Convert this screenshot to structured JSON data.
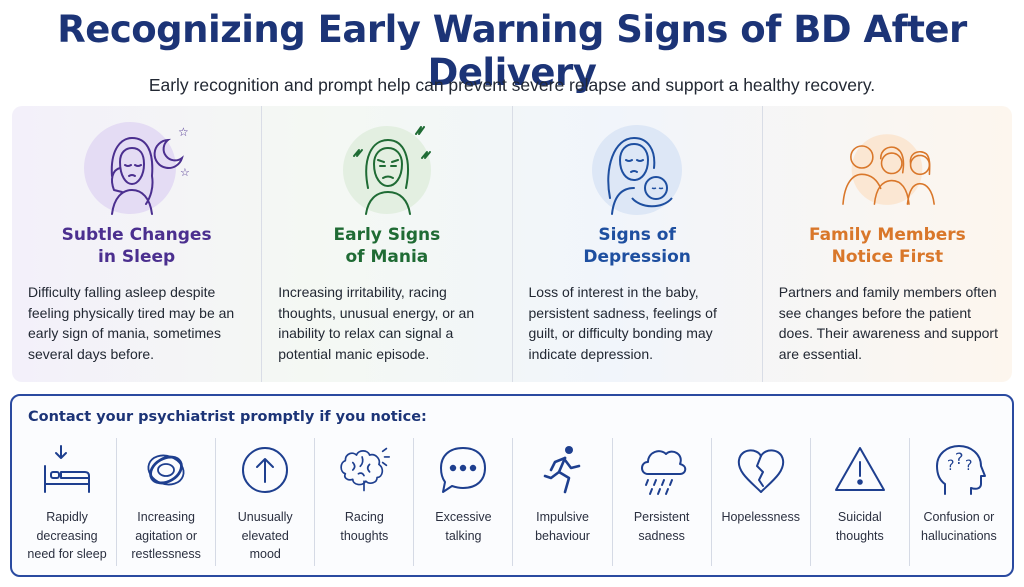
{
  "header": {
    "title": "Recognizing Early Warning Signs of BD After Delivery",
    "subtitle": "Early recognition and prompt help can prevent severe relapse and support a healthy recovery."
  },
  "colors": {
    "title": "#1c3477",
    "sleep": "#4b2f8f",
    "mania": "#1f6b34",
    "depression": "#1e4fa0",
    "family": "#d9772a",
    "border": "#2a4aa0"
  },
  "cards": [
    {
      "icon": "sleepless-woman-icon",
      "title_1": "Subtle Changes",
      "title_2": "in Sleep",
      "text": "Difficulty falling asleep despite feeling physically tired may be an early sign of mania, sometimes several days before."
    },
    {
      "icon": "agitated-woman-icon",
      "title_1": "Early Signs",
      "title_2": "of Mania",
      "text": "Increasing irritability, racing thoughts, unusual energy, or an inability to relax can signal a potential manic episode."
    },
    {
      "icon": "mother-with-baby-icon",
      "title_1": "Signs of",
      "title_2": "Depression",
      "text": "Loss of interest in the baby, persistent sadness, feelings of guilt, or difficulty bonding may indicate depression."
    },
    {
      "icon": "family-icon",
      "title_1": "Family Members",
      "title_2": "Notice First",
      "text": "Partners and family members often see changes before the patient does. Their awareness and support are essential."
    }
  ],
  "contact": {
    "title": "Contact your psychiatrist promptly if you notice:",
    "signs": [
      {
        "icon": "bed-icon",
        "label": "Rapidly\ndecreasing\nneed for sleep"
      },
      {
        "icon": "tangled-scribble-icon",
        "label": "Increasing\nagitation or\nrestlessness"
      },
      {
        "icon": "up-arrow-circle-icon",
        "label": "Unusually\nelevated\nmood"
      },
      {
        "icon": "brain-icon",
        "label": "Racing\nthoughts"
      },
      {
        "icon": "speech-bubble-icon",
        "label": "Excessive\ntalking"
      },
      {
        "icon": "running-person-icon",
        "label": "Impulsive\nbehaviour"
      },
      {
        "icon": "rain-cloud-icon",
        "label": "Persistent\nsadness"
      },
      {
        "icon": "broken-heart-icon",
        "label": "Hopelessness"
      },
      {
        "icon": "warning-triangle-icon",
        "label": "Suicidal\nthoughts"
      },
      {
        "icon": "head-question-icon",
        "label": "Confusion or\nhallucinations"
      }
    ]
  }
}
